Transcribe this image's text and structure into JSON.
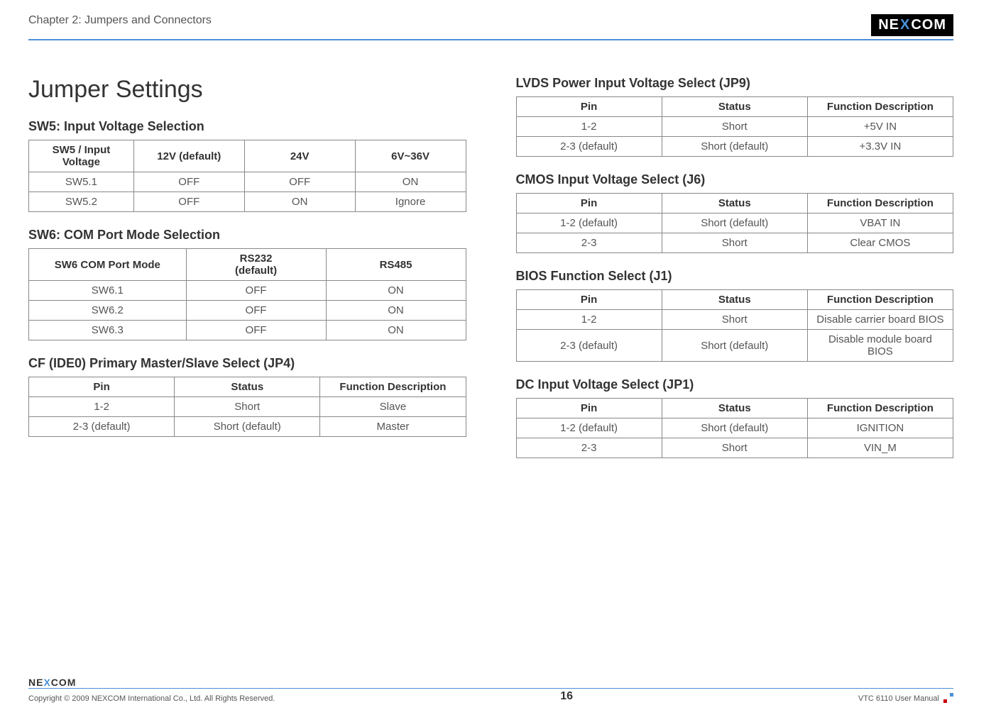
{
  "header": {
    "chapter": "Chapter 2: Jumpers and Connectors",
    "logo": "NEXCOM"
  },
  "left": {
    "mainTitle": "Jumper Settings",
    "sw5": {
      "title": "SW5: Input Voltage Selection",
      "headers": [
        "SW5 / Input Voltage",
        "12V (default)",
        "24V",
        "6V~36V"
      ],
      "rows": [
        [
          "SW5.1",
          "OFF",
          "OFF",
          "ON"
        ],
        [
          "SW5.2",
          "OFF",
          "ON",
          "Ignore"
        ]
      ]
    },
    "sw6": {
      "title": "SW6: COM Port Mode Selection",
      "headers": [
        "SW6 COM Port Mode",
        "RS232\n(default)",
        "RS485"
      ],
      "rows": [
        [
          "SW6.1",
          "OFF",
          "ON"
        ],
        [
          "SW6.2",
          "OFF",
          "ON"
        ],
        [
          "SW6.3",
          "OFF",
          "ON"
        ]
      ]
    },
    "jp4": {
      "title": "CF (IDE0) Primary Master/Slave Select (JP4)",
      "headers": [
        "Pin",
        "Status",
        "Function Description"
      ],
      "rows": [
        [
          "1-2",
          "Short",
          "Slave"
        ],
        [
          "2-3 (default)",
          "Short (default)",
          "Master"
        ]
      ]
    }
  },
  "right": {
    "jp9": {
      "title": "LVDS Power Input Voltage Select (JP9)",
      "headers": [
        "Pin",
        "Status",
        "Function Description"
      ],
      "rows": [
        [
          "1-2",
          "Short",
          "+5V IN"
        ],
        [
          "2-3 (default)",
          "Short (default)",
          "+3.3V IN"
        ]
      ]
    },
    "j6": {
      "title": "CMOS Input Voltage Select (J6)",
      "headers": [
        "Pin",
        "Status",
        "Function Description"
      ],
      "rows": [
        [
          "1-2 (default)",
          "Short (default)",
          "VBAT IN"
        ],
        [
          "2-3",
          "Short",
          "Clear CMOS"
        ]
      ]
    },
    "j1": {
      "title": "BIOS Function Select (J1)",
      "headers": [
        "Pin",
        "Status",
        "Function Description"
      ],
      "rows": [
        [
          "1-2",
          "Short",
          "Disable carrier board BIOS"
        ],
        [
          "2-3 (default)",
          "Short (default)",
          "Disable module board BIOS"
        ]
      ]
    },
    "jp1": {
      "title": "DC Input Voltage Select (JP1)",
      "headers": [
        "Pin",
        "Status",
        "Function Description"
      ],
      "rows": [
        [
          "1-2 (default)",
          "Short (default)",
          "IGNITION"
        ],
        [
          "2-3",
          "Short",
          "VIN_M"
        ]
      ]
    }
  },
  "footer": {
    "copyright": "Copyright © 2009 NEXCOM International Co., Ltd. All Rights Reserved.",
    "page": "16",
    "manual": "VTC 6110 User Manual"
  }
}
